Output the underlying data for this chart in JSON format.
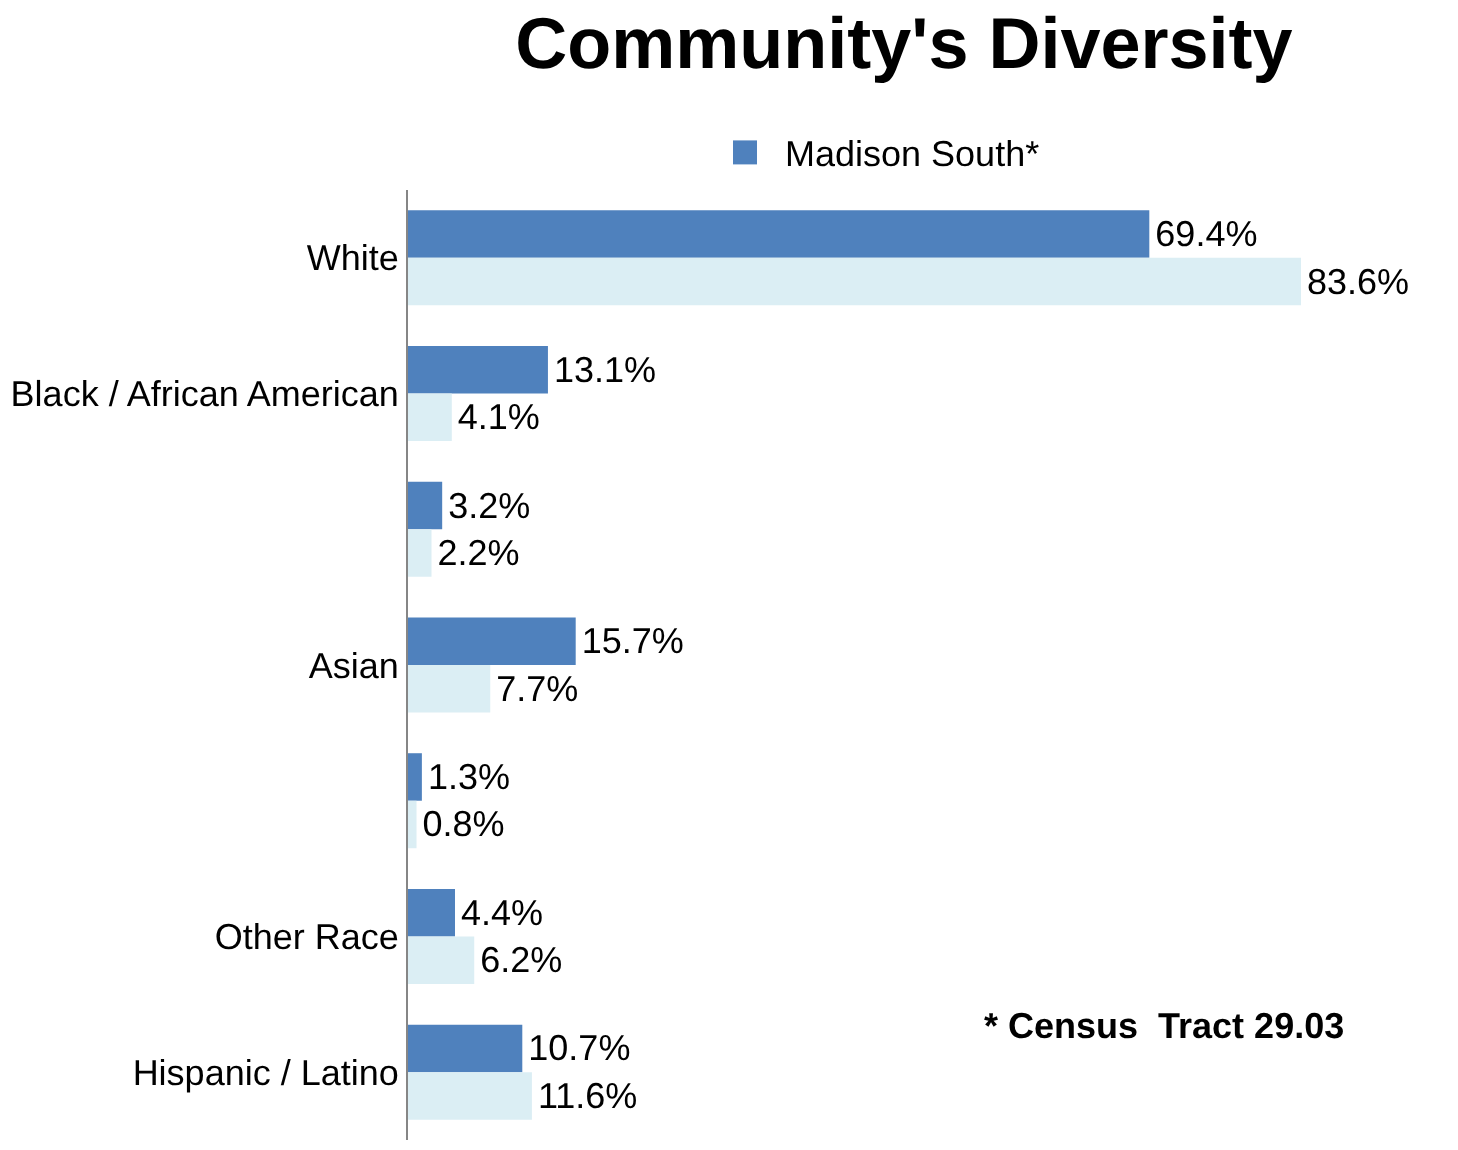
{
  "chart_data": {
    "type": "bar",
    "orientation": "horizontal",
    "title": "Community's Diversity",
    "categories": [
      "White",
      "Black / African American",
      null,
      "Asian",
      null,
      "Other Race",
      "Hispanic / Latino"
    ],
    "series": [
      {
        "name": "Madison South*",
        "color": "#4f81bd",
        "values": [
          69.4,
          13.1,
          3.2,
          15.7,
          1.3,
          4.4,
          10.7
        ],
        "value_labels": [
          "69.4%",
          "13.1%",
          "3.2%",
          "15.7%",
          "1.3%",
          "4.4%",
          "10.7%"
        ]
      },
      {
        "color": "#dbeef4",
        "values": [
          83.6,
          4.1,
          2.2,
          7.7,
          0.8,
          6.2,
          11.6
        ],
        "value_labels": [
          "83.6%",
          "4.1%",
          "2.2%",
          "7.7%",
          "0.8%",
          "6.2%",
          "11.6%"
        ]
      }
    ],
    "annotations": [
      "* Census  Tract 29.03"
    ],
    "legend": "top",
    "tick_labels": "y"
  }
}
